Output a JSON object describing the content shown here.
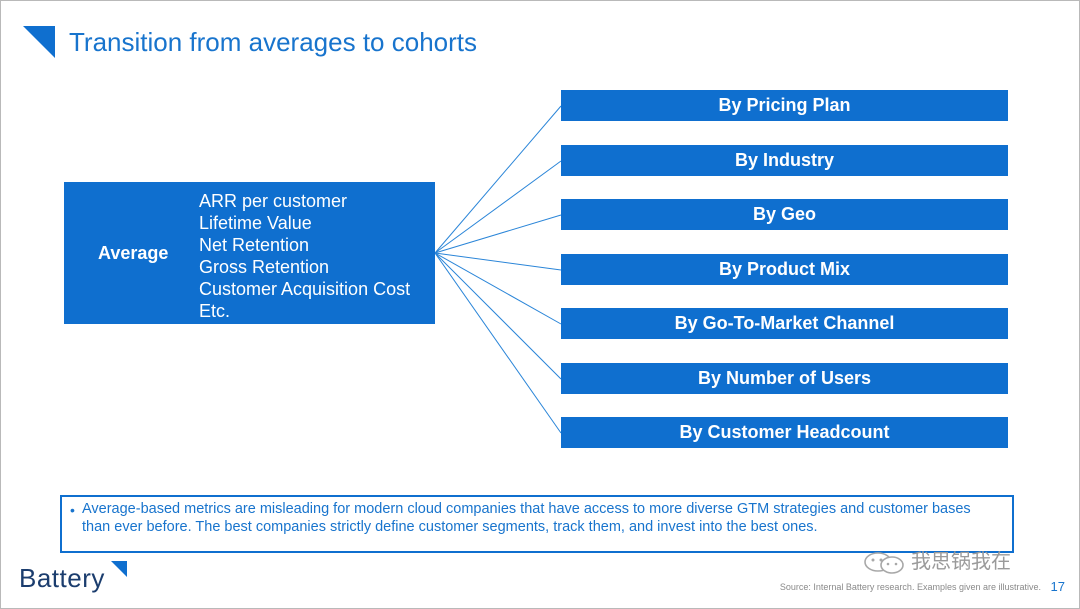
{
  "slide": {
    "title": "Transition from averages to cohorts",
    "average": {
      "label": "Average",
      "metrics": [
        "ARR per customer",
        "Lifetime Value",
        "Net Retention",
        "Gross Retention",
        "Customer Acquisition Cost",
        "Etc."
      ]
    },
    "cohorts": [
      "By Pricing Plan",
      "By Industry",
      "By Geo",
      "By Product Mix",
      "By Go-To-Market Channel",
      "By Number of Users",
      "By Customer Headcount"
    ],
    "note": {
      "bullet": "•",
      "text": "Average-based metrics are misleading for modern cloud companies that have access to more diverse GTM strategies and customer bases than ever before. The best companies strictly define customer segments, track them, and invest into the best ones."
    },
    "footer": {
      "logo": "Battery",
      "watermark": "我思锅我在",
      "source": "Source: Internal Battery research. Examples given are illustrative.",
      "page_number": "17"
    },
    "colors": {
      "accent": "#0f6fcf",
      "title": "#1874cd",
      "logo": "#1b3d6e",
      "background": "#ffffff"
    }
  }
}
